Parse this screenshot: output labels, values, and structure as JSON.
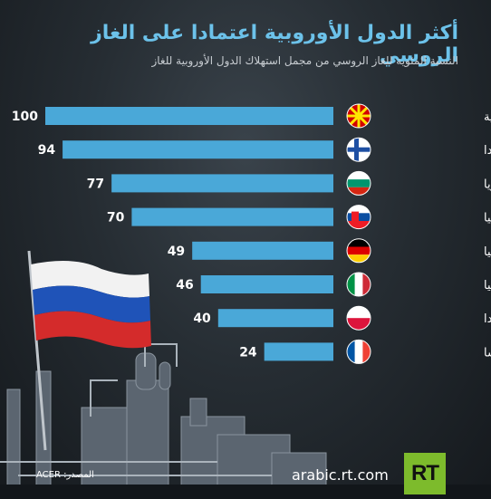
{
  "header": {
    "title": "أكثر الدول الأوروبية اعتمادا على الغاز الروسي",
    "subtitle": "النسبة المئوية للغاز الروسي من مجمل استهلاك الدول الأوروبية للغاز"
  },
  "chart_data": {
    "type": "bar",
    "orientation": "horizontal",
    "title": "أكثر الدول الأوروبية اعتمادا على الغاز الروسي",
    "subtitle": "النسبة المئوية للغاز الروسي من مجمل استهلاك الدول الأوروبية للغاز",
    "categories": [
      "مقدونيا الشمالية",
      "فنلندا",
      "بلغاريا",
      "سلوفاكيا",
      "ألمانيا",
      "إيطاليا",
      "بولندا",
      "فرنسا"
    ],
    "values": [
      100,
      94,
      77,
      70,
      49,
      46,
      40,
      24
    ],
    "xlim": [
      0,
      100
    ],
    "bar_color": "#4aa8d8",
    "flags": [
      "north-macedonia-flag-icon",
      "finland-flag-icon",
      "bulgaria-flag-icon",
      "slovakia-flag-icon",
      "germany-flag-icon",
      "italy-flag-icon",
      "poland-flag-icon",
      "france-flag-icon"
    ]
  },
  "footer": {
    "url": "arabic.rt.com",
    "logo": "RT",
    "source": "المصدر: ACER"
  },
  "colors": {
    "title": "#6cc2ea",
    "bar": "#4aa8d8",
    "logo": "#7dbb2c"
  }
}
